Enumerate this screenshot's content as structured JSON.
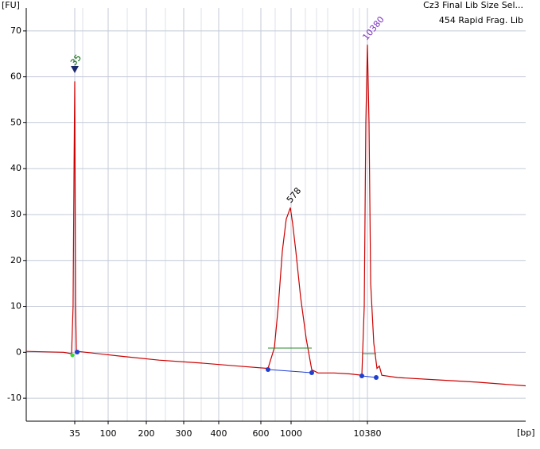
{
  "chart_data": {
    "type": "line",
    "subtitle": "454 Rapid Frag. Lib",
    "y_label": "[FU]",
    "x_label": "[bp]",
    "series": [
      {
        "name": "Cz3 Final Lib Size Sel...",
        "color": "#cc0000",
        "x": [
          15,
          30.4,
          33.7,
          34.3,
          34.7,
          35,
          36.5,
          38.1,
          41.2,
          129,
          234,
          343,
          494,
          695,
          779,
          831,
          884,
          936,
          990,
          1195,
          1586,
          2172,
          2856,
          3540,
          4322,
          6276,
          8230,
          9696,
          9989,
          10185,
          10380,
          10396,
          10413,
          10445,
          10478,
          10502,
          10527,
          10689,
          11096,
          11503,
          12000
        ],
        "values": [
          0.2,
          0,
          -0.3,
          10,
          40,
          59,
          10,
          0.3,
          0.2,
          -0.8,
          -1.7,
          -2.3,
          -3,
          -3.5,
          1,
          10,
          22,
          29,
          31.5,
          28,
          22,
          12,
          3,
          -3.8,
          -4.5,
          -4.5,
          -4.7,
          -5,
          10,
          50,
          67,
          50,
          15,
          2,
          -3.5,
          -3,
          -5,
          -5.5,
          -6,
          -6.5,
          -7.3
        ]
      }
    ],
    "annotations": [
      {
        "text": "35",
        "color": "#006400"
      },
      {
        "text": "578",
        "color": "#000000"
      },
      {
        "text": "10380",
        "color": "#7b2fbf"
      }
    ],
    "xlim": [
      15,
      12000
    ],
    "xticks": [
      35,
      100,
      200,
      300,
      400,
      600,
      1000,
      10380
    ],
    "ylim": [
      -15,
      75
    ],
    "yticks": [
      -10,
      0,
      10,
      20,
      30,
      40,
      50,
      60,
      70
    ],
    "grid": true
  }
}
